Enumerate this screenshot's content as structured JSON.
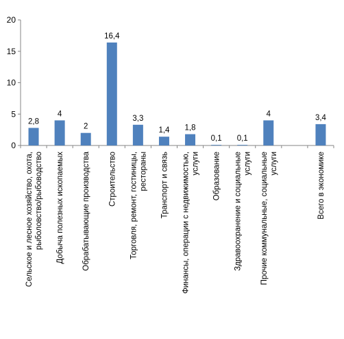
{
  "chart_data": {
    "type": "bar",
    "title": "",
    "xlabel": "",
    "ylabel": "",
    "ylim": [
      0,
      20
    ],
    "yticks": [
      0,
      5,
      10,
      15,
      20
    ],
    "grid": false,
    "legend": "none",
    "bar_color": "#4F81BD",
    "axis_color": "#868686",
    "categories": [
      [
        "Сельское и лесное хозяйство, охота,",
        "рыболовство/рыбоводство"
      ],
      [
        "Добыча полезных ископаемых"
      ],
      [
        "Обрабатывающие производства"
      ],
      [
        "Строительство"
      ],
      [
        "Торговля, ремонт, гостиницы,",
        "рестораны"
      ],
      [
        "Транспорт и связь"
      ],
      [
        "Финансы, операции с недвижимостью,",
        "услуги"
      ],
      [
        "Образование"
      ],
      [
        "Здравоохранение и социальные",
        "услуги"
      ],
      [
        "Прочие коммунальные, социальные",
        "услуги"
      ],
      [
        ""
      ],
      [
        "Всего в экономике"
      ]
    ],
    "values": [
      2.8,
      4,
      2,
      16.4,
      3.3,
      1.4,
      1.8,
      0.1,
      0.1,
      4,
      null,
      3.4
    ],
    "data_labels": [
      "2,8",
      "4",
      "2",
      "16,4",
      "3,3",
      "1,4",
      "1,8",
      "0,1",
      "0,1",
      "4",
      "",
      "3,4"
    ]
  }
}
